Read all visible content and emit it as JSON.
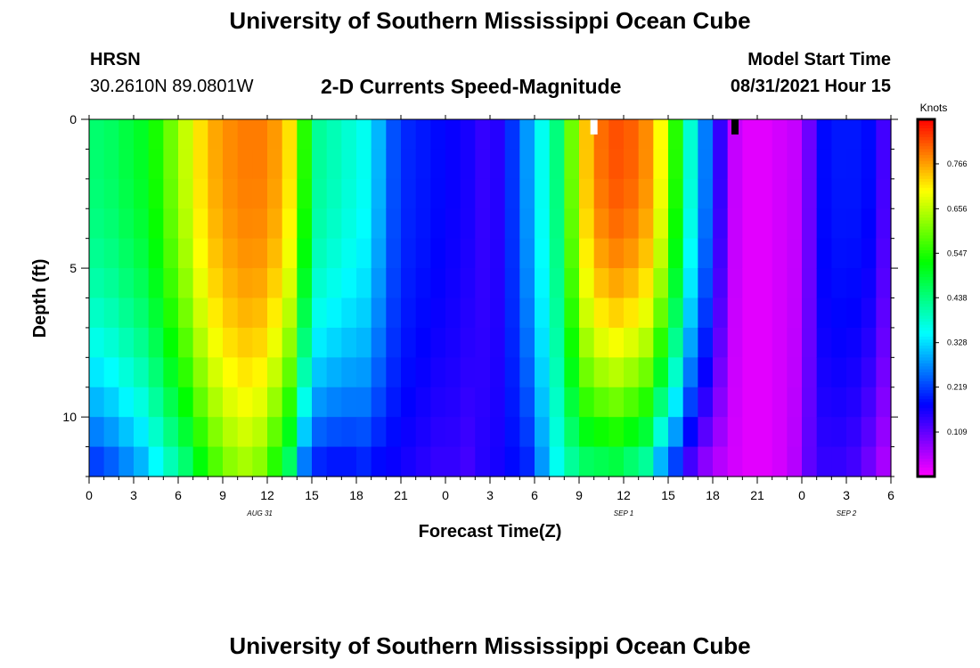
{
  "header": {
    "title_top": "University of Southern Mississippi Ocean Cube",
    "title_bottom": "University of Southern Mississippi Ocean Cube",
    "station": "HRSN",
    "coords": "30.2610N  89.0801W",
    "plot_title": "2-D Currents Speed-Magnitude",
    "model_label": "Model Start Time",
    "model_time": "08/31/2021 Hour 15"
  },
  "chart_data": {
    "type": "heatmap",
    "title": "2-D Currents Speed-Magnitude",
    "xlabel": "Forecast Time(Z)",
    "ylabel": "Depth (ft)",
    "x_tick_labels": [
      "0",
      "3",
      "6",
      "9",
      "12",
      "15",
      "18",
      "21",
      "0",
      "3",
      "6",
      "9",
      "12",
      "15",
      "18",
      "21",
      "0",
      "3",
      "6"
    ],
    "x_range_hours": [
      0,
      54
    ],
    "y_ticks": [
      0,
      5,
      10
    ],
    "y_range_ft": [
      0,
      12
    ],
    "date_labels": [
      {
        "text": "AUG 31",
        "hour": 11.5
      },
      {
        "text": "SEP 1",
        "hour": 36
      },
      {
        "text": "SEP 2",
        "hour": 51
      }
    ],
    "markers": [
      {
        "hour": 34,
        "color": "#ffffff"
      },
      {
        "hour": 43.5,
        "color": "#000000"
      }
    ],
    "colorbar": {
      "unit": "Knots",
      "min": 0.0,
      "max": 0.875,
      "ticks": [
        "0.766",
        "0.656",
        "0.547",
        "0.438",
        "0.328",
        "0.219",
        "0.109"
      ],
      "tick_values": [
        0.766,
        0.656,
        0.547,
        0.438,
        0.328,
        0.219,
        0.109
      ]
    },
    "surface_speed_by_hour": [
      0.45,
      0.46,
      0.48,
      0.5,
      0.54,
      0.6,
      0.66,
      0.72,
      0.76,
      0.78,
      0.79,
      0.79,
      0.77,
      0.72,
      0.55,
      0.42,
      0.4,
      0.38,
      0.36,
      0.3,
      0.23,
      0.2,
      0.19,
      0.18,
      0.17,
      0.16,
      0.14,
      0.15,
      0.21,
      0.28,
      0.36,
      0.44,
      0.6,
      0.74,
      0.8,
      0.82,
      0.81,
      0.78,
      0.7,
      0.55,
      0.38,
      0.26,
      0.14,
      0.04,
      0.02,
      0.02,
      0.03,
      0.04,
      0.1,
      0.18,
      0.19,
      0.19,
      0.18,
      0.13
    ],
    "bottom_speed_by_hour": [
      0.22,
      0.24,
      0.27,
      0.3,
      0.35,
      0.4,
      0.45,
      0.52,
      0.58,
      0.62,
      0.64,
      0.62,
      0.55,
      0.46,
      0.26,
      0.2,
      0.19,
      0.19,
      0.2,
      0.18,
      0.17,
      0.16,
      0.15,
      0.14,
      0.14,
      0.13,
      0.15,
      0.16,
      0.18,
      0.2,
      0.28,
      0.36,
      0.42,
      0.46,
      0.47,
      0.48,
      0.45,
      0.42,
      0.3,
      0.22,
      0.13,
      0.08,
      0.05,
      0.03,
      0.02,
      0.02,
      0.03,
      0.05,
      0.11,
      0.14,
      0.14,
      0.13,
      0.1,
      0.06
    ]
  }
}
